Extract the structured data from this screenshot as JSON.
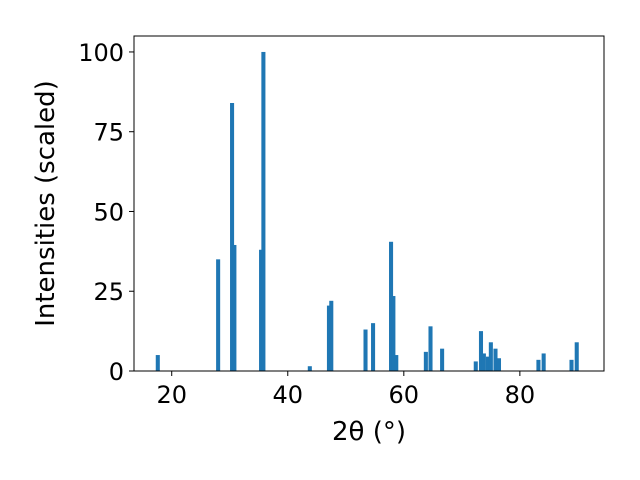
{
  "chart_data": {
    "type": "bar",
    "title": "",
    "xlabel": "2θ (°)",
    "ylabel": "Intensities (scaled)",
    "xlim": [
      13.5,
      94.5
    ],
    "ylim": [
      0,
      105
    ],
    "xticks": [
      20,
      40,
      60,
      80
    ],
    "yticks": [
      0,
      25,
      50,
      75,
      100
    ],
    "bar_width_deg": 0.7,
    "bar_color": "#1f77b4",
    "grid": false,
    "legend": "none",
    "series": [
      {
        "x": [
          17.6,
          28.0,
          30.4,
          30.8,
          35.4,
          35.8,
          43.8,
          47.1,
          47.5,
          53.4,
          54.7,
          57.8,
          58.2,
          58.7,
          63.8,
          64.6,
          66.6,
          72.4,
          73.3,
          73.8,
          74.5,
          75.0,
          75.8,
          76.4,
          83.2,
          84.1,
          88.9,
          89.8
        ],
        "values": [
          5,
          35,
          84,
          39.5,
          38,
          100,
          1.5,
          20.5,
          22,
          13,
          15,
          40.5,
          23.5,
          5,
          6,
          14,
          7,
          3,
          12.5,
          5.5,
          4.5,
          9,
          7,
          4,
          3.5,
          5.5,
          3.5,
          9
        ]
      }
    ]
  }
}
